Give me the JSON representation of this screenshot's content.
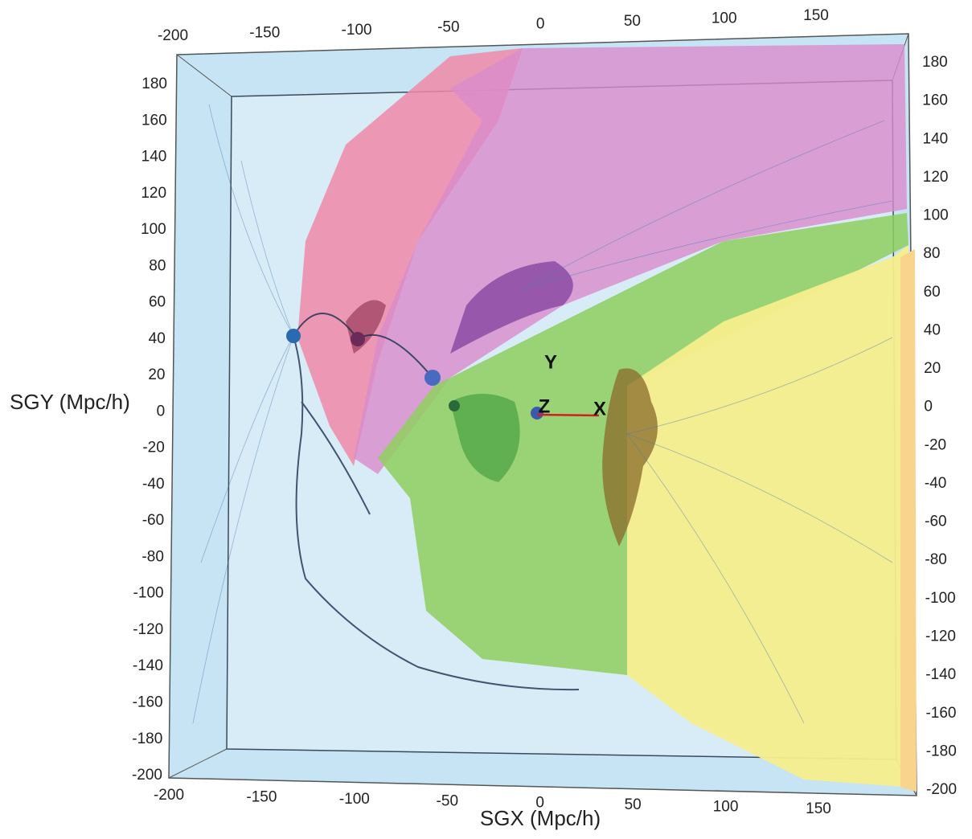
{
  "axes": {
    "x_label": "SGX (Mpc/h)",
    "y_label": "SGY (Mpc/h)",
    "top_ticks": [
      -200,
      -150,
      -100,
      -50,
      0,
      50,
      100,
      150
    ],
    "bottom_ticks": [
      -200,
      -150,
      -100,
      -50,
      0,
      50,
      100,
      150
    ],
    "left_ticks": [
      180,
      160,
      140,
      120,
      100,
      80,
      60,
      40,
      20,
      0,
      -20,
      -40,
      -60,
      -80,
      -100,
      -120,
      -140,
      -160,
      -180,
      -200
    ],
    "right_ticks": [
      180,
      160,
      140,
      120,
      100,
      80,
      60,
      40,
      20,
      0,
      -20,
      -40,
      -60,
      -80,
      -100,
      -120,
      -140,
      -160,
      -180,
      -200
    ]
  },
  "triad": {
    "x": "X",
    "y": "Y",
    "z": "Z"
  }
}
